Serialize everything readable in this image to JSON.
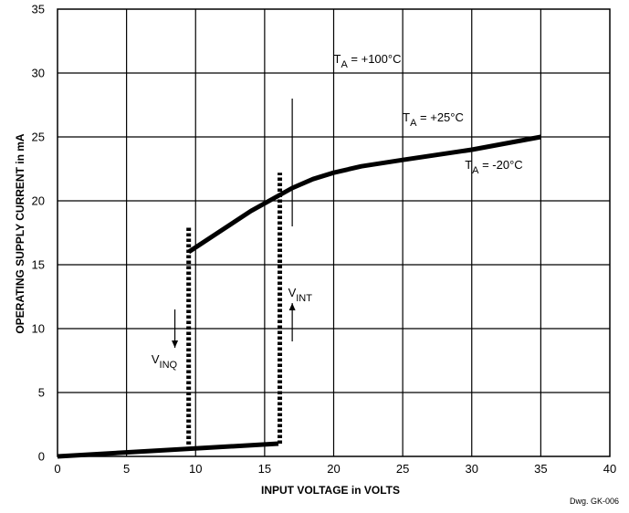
{
  "chart_data": {
    "type": "line",
    "xlabel": "INPUT VOLTAGE in VOLTS",
    "ylabel": "OPERATING SUPPLY CURRENT in mA",
    "xlim": [
      0,
      40
    ],
    "ylim": [
      0,
      35
    ],
    "x_ticks": [
      0,
      5,
      10,
      15,
      20,
      25,
      30,
      35,
      40
    ],
    "y_ticks": [
      0,
      5,
      10,
      15,
      20,
      25,
      30,
      35
    ],
    "grid": true,
    "series": [
      {
        "values_xy": [
          [
            0,
            0
          ],
          [
            16,
            1.0
          ]
        ]
      },
      {
        "values_xy": [
          [
            9.5,
            16
          ],
          [
            14,
            19.2
          ],
          [
            17,
            21
          ],
          [
            18.5,
            21.7
          ],
          [
            20,
            22.2
          ],
          [
            22,
            22.7
          ],
          [
            25,
            23.2
          ],
          [
            30,
            24
          ],
          [
            35,
            25
          ]
        ]
      }
    ],
    "threshold_lines": [
      {
        "x": 9.5,
        "y_from": 0.5,
        "y_to": 18
      },
      {
        "x": 16.1,
        "y_from": 1,
        "y_to": 22.2
      }
    ],
    "arrows": [
      {
        "x": 8.5,
        "y_from": 11.5,
        "y_to": 8.5,
        "direction": "down"
      },
      {
        "x": 17,
        "y_from": 9,
        "y_to": 12,
        "direction": "up"
      }
    ],
    "temperature_band": {
      "x": 17,
      "y_from": 18,
      "y_to": 28
    },
    "annotations": [
      {
        "main": "T",
        "sub": "A",
        "rest": " = +100°C",
        "x": 20,
        "y": 30.8
      },
      {
        "main": "T",
        "sub": "A",
        "rest": " = +25°C",
        "x": 25,
        "y": 26.2
      },
      {
        "main": "T",
        "sub": "A",
        "rest": " = -20°C",
        "x": 29.5,
        "y": 22.5
      },
      {
        "main": "V",
        "sub": "INT",
        "rest": "",
        "x": 16.7,
        "y": 12.5
      },
      {
        "main": "V",
        "sub": "INQ",
        "rest": "",
        "x": 6.8,
        "y": 7.3
      }
    ],
    "drawing_number": "Dwg. GK-006"
  }
}
